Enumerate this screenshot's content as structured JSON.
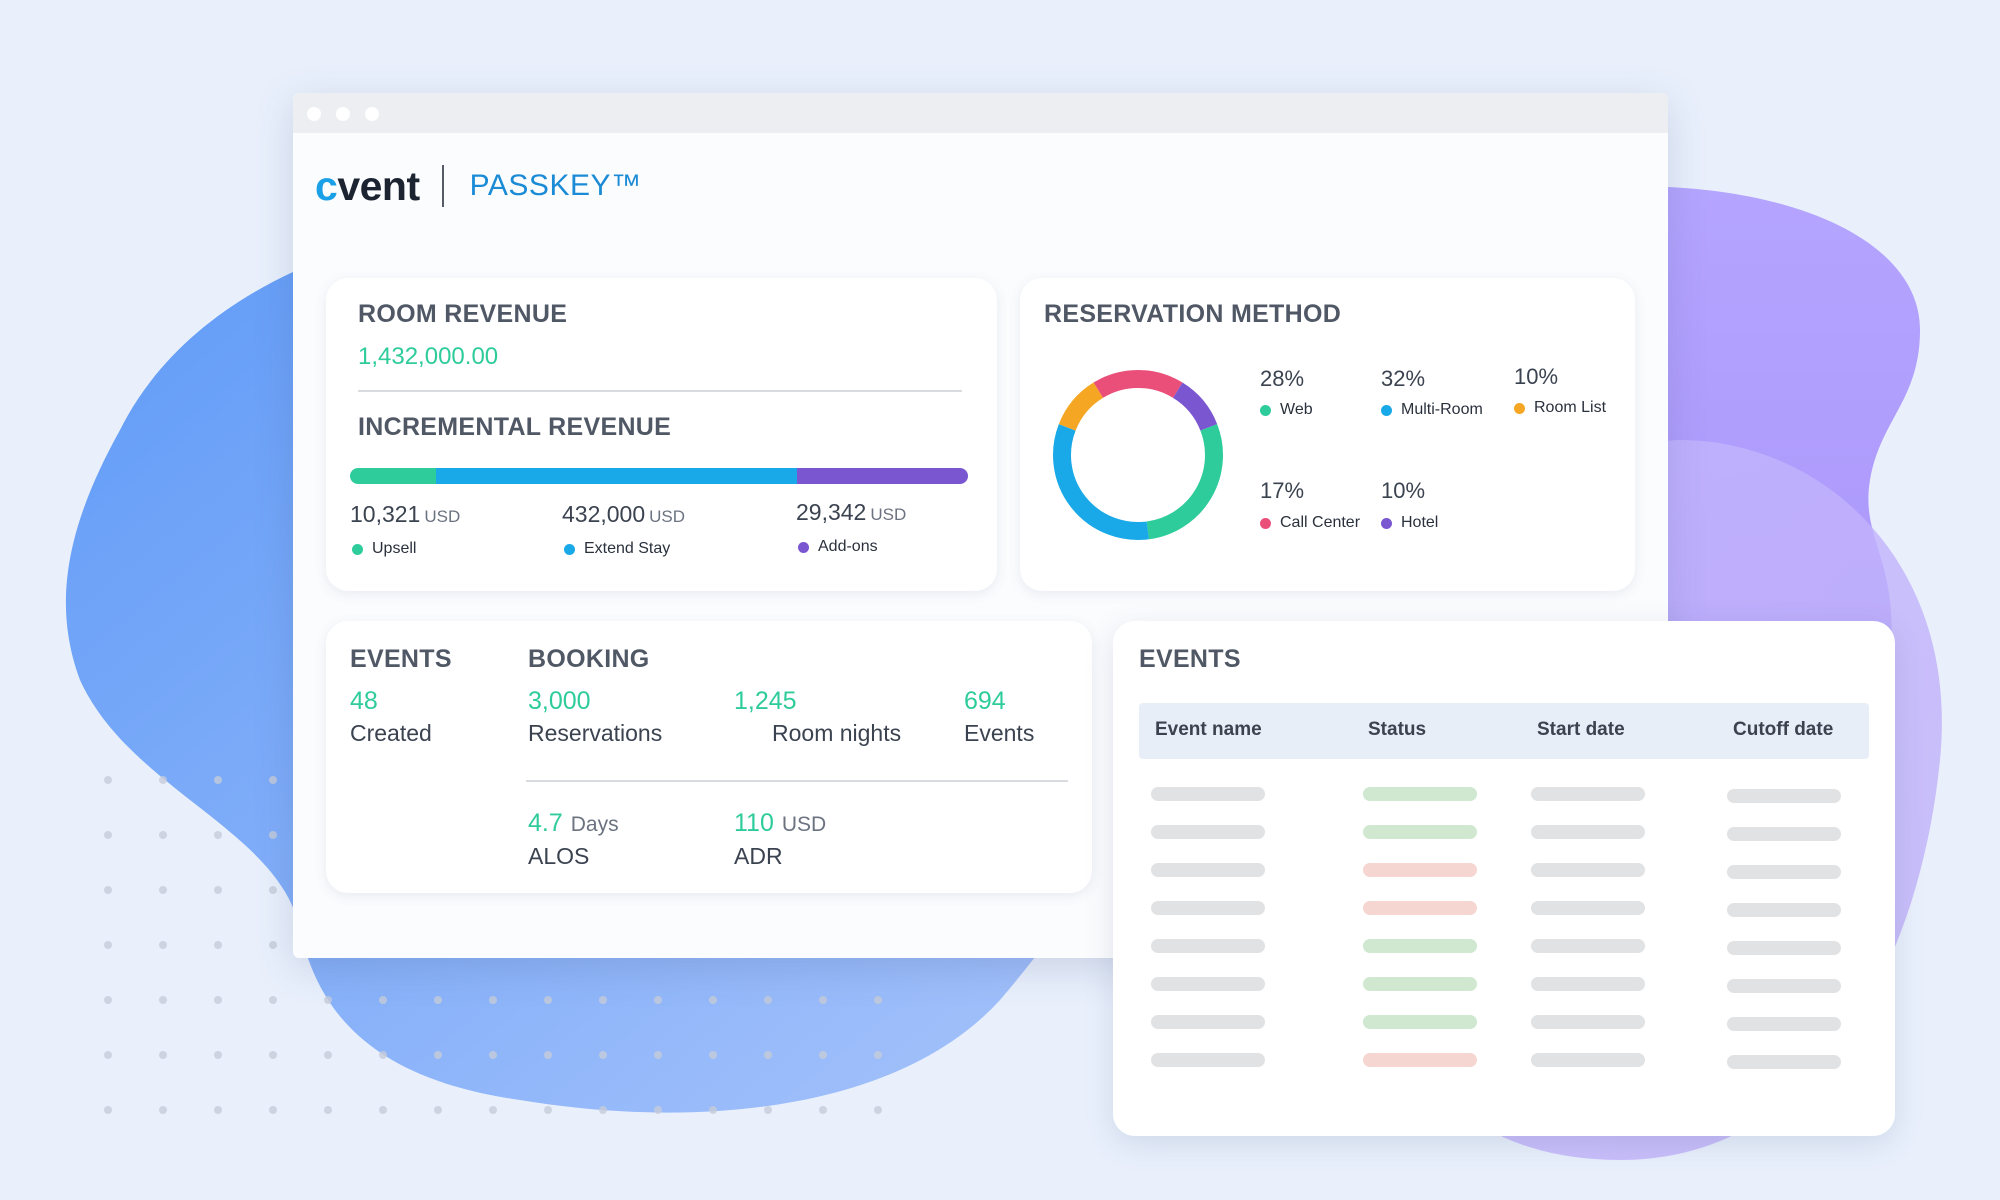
{
  "colors": {
    "green": "#2fcc9b",
    "blue": "#1aa9e8",
    "purple": "#7a56d0",
    "orange": "#f5a623",
    "pink": "#ea4f7a",
    "skeleton_gray": "#e1e2e4",
    "skeleton_green": "#cfe8cf",
    "skeleton_red": "#f6d6d0"
  },
  "brand": {
    "logo_text": "cvent",
    "product": "PASSKEY™"
  },
  "room_revenue": {
    "title": "ROOM REVENUE",
    "value": "1,432,000.00"
  },
  "incremental_revenue": {
    "title": "INCREMENTAL REVENUE",
    "items": [
      {
        "amount": "10,321",
        "unit": "USD",
        "label": "Upsell",
        "color": "#2fcc9b"
      },
      {
        "amount": "432,000",
        "unit": "USD",
        "label": "Extend Stay",
        "color": "#1aa9e8"
      },
      {
        "amount": "29,342",
        "unit": "USD",
        "label": "Add-ons",
        "color": "#7a56d0"
      }
    ]
  },
  "reservation_method": {
    "title": "RESERVATION METHOD",
    "items": [
      {
        "pct": "28%",
        "label": "Web",
        "color": "#2fcc9b"
      },
      {
        "pct": "32%",
        "label": "Multi-Room",
        "color": "#1aa9e8"
      },
      {
        "pct": "10%",
        "label": "Room List",
        "color": "#f5a623"
      },
      {
        "pct": "17%",
        "label": "Call Center",
        "color": "#ea4f7a"
      },
      {
        "pct": "10%",
        "label": "Hotel",
        "color": "#7a56d0"
      }
    ]
  },
  "chart_data": {
    "type": "pie",
    "variant": "donut",
    "title": "RESERVATION METHOD",
    "categories": [
      "Web",
      "Multi-Room",
      "Room List",
      "Call Center",
      "Hotel"
    ],
    "values": [
      28,
      32,
      10,
      17,
      10
    ],
    "unit": "%",
    "colors": [
      "#2fcc9b",
      "#1aa9e8",
      "#f5a623",
      "#ea4f7a",
      "#7a56d0"
    ]
  },
  "events_summary": {
    "title": "EVENTS",
    "created_value": "48",
    "created_label": "Created"
  },
  "booking": {
    "title": "BOOKING",
    "reservations_value": "3,000",
    "reservations_label": "Reservations",
    "room_nights_value": "1,245",
    "room_nights_label": "Room nights",
    "events_value": "694",
    "events_label": "Events",
    "alos_value": "4.7",
    "alos_unit": "Days",
    "alos_label": "ALOS",
    "adr_value": "110",
    "adr_unit": "USD",
    "adr_label": "ADR"
  },
  "events_table": {
    "title": "EVENTS",
    "columns": [
      "Event name",
      "Status",
      "Start date",
      "Cutoff date"
    ],
    "row_statuses": [
      "active",
      "active",
      "closed",
      "closed",
      "active",
      "active",
      "active",
      "closed"
    ]
  }
}
